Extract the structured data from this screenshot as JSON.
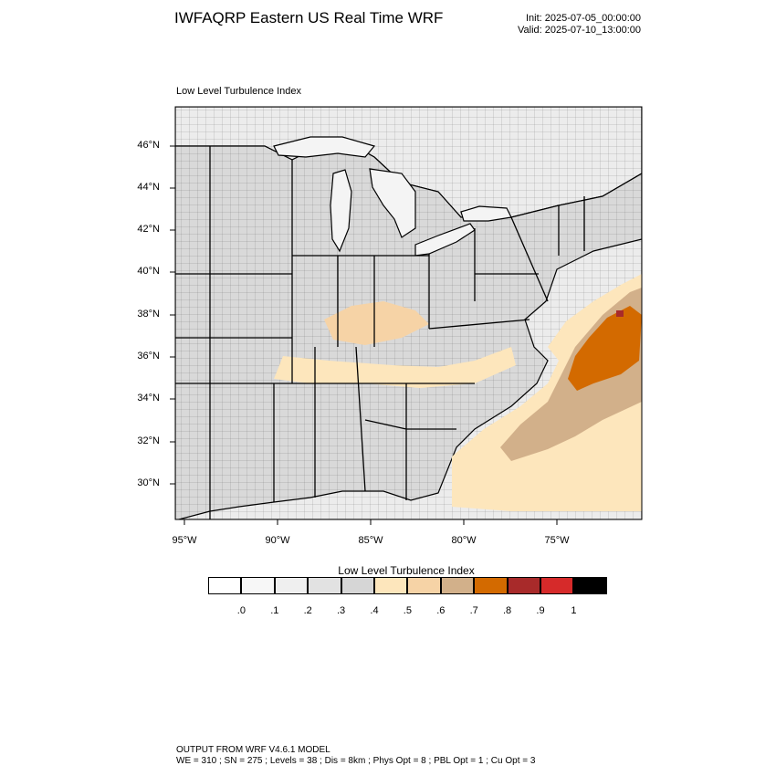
{
  "header": {
    "title": "IWFAQRP Eastern US Real Time WRF",
    "init": "Init: 2025-07-05_00:00:00",
    "valid": "Valid: 2025-07-10_13:00:00"
  },
  "map": {
    "label": "Low Level Turbulence Index",
    "lat_labels": [
      "46°N",
      "44°N",
      "42°N",
      "40°N",
      "38°N",
      "36°N",
      "34°N",
      "32°N",
      "30°N"
    ],
    "lon_labels": [
      "95°W",
      "90°W",
      "85°W",
      "80°W",
      "75°W"
    ],
    "colors": {
      "land_base": "#d9d9d9",
      "water_base": "#ececec",
      "lake": "#f4f4f4",
      "boundary": "#000000",
      "low_turb": "#fde6bc",
      "mid_turb": "#f6d3a6",
      "high_turb": "#d2b08a",
      "peak_turb": "#d36a00",
      "max_turb": "#a82a2a"
    }
  },
  "colorbar": {
    "title": "Low Level Turbulence Index",
    "colors": [
      "#ffffff",
      "#f7f7f7",
      "#efefef",
      "#e2e2e2",
      "#d6d6d6",
      "#fde6bc",
      "#f6d3a6",
      "#d2b08a",
      "#d36a00",
      "#a82a2a",
      "#d62a2a",
      "#000000"
    ],
    "labels": [
      ".0",
      ".1",
      ".2",
      ".3",
      ".4",
      ".5",
      ".6",
      ".7",
      ".8",
      ".9",
      "1"
    ]
  },
  "footer": {
    "line1": "OUTPUT FROM WRF V4.6.1 MODEL",
    "line2": "WE = 310 ; SN = 275 ; Levels = 38 ; Dis = 8km ; Phys Opt = 8 ; PBL Opt = 1 ; Cu Opt = 3"
  }
}
